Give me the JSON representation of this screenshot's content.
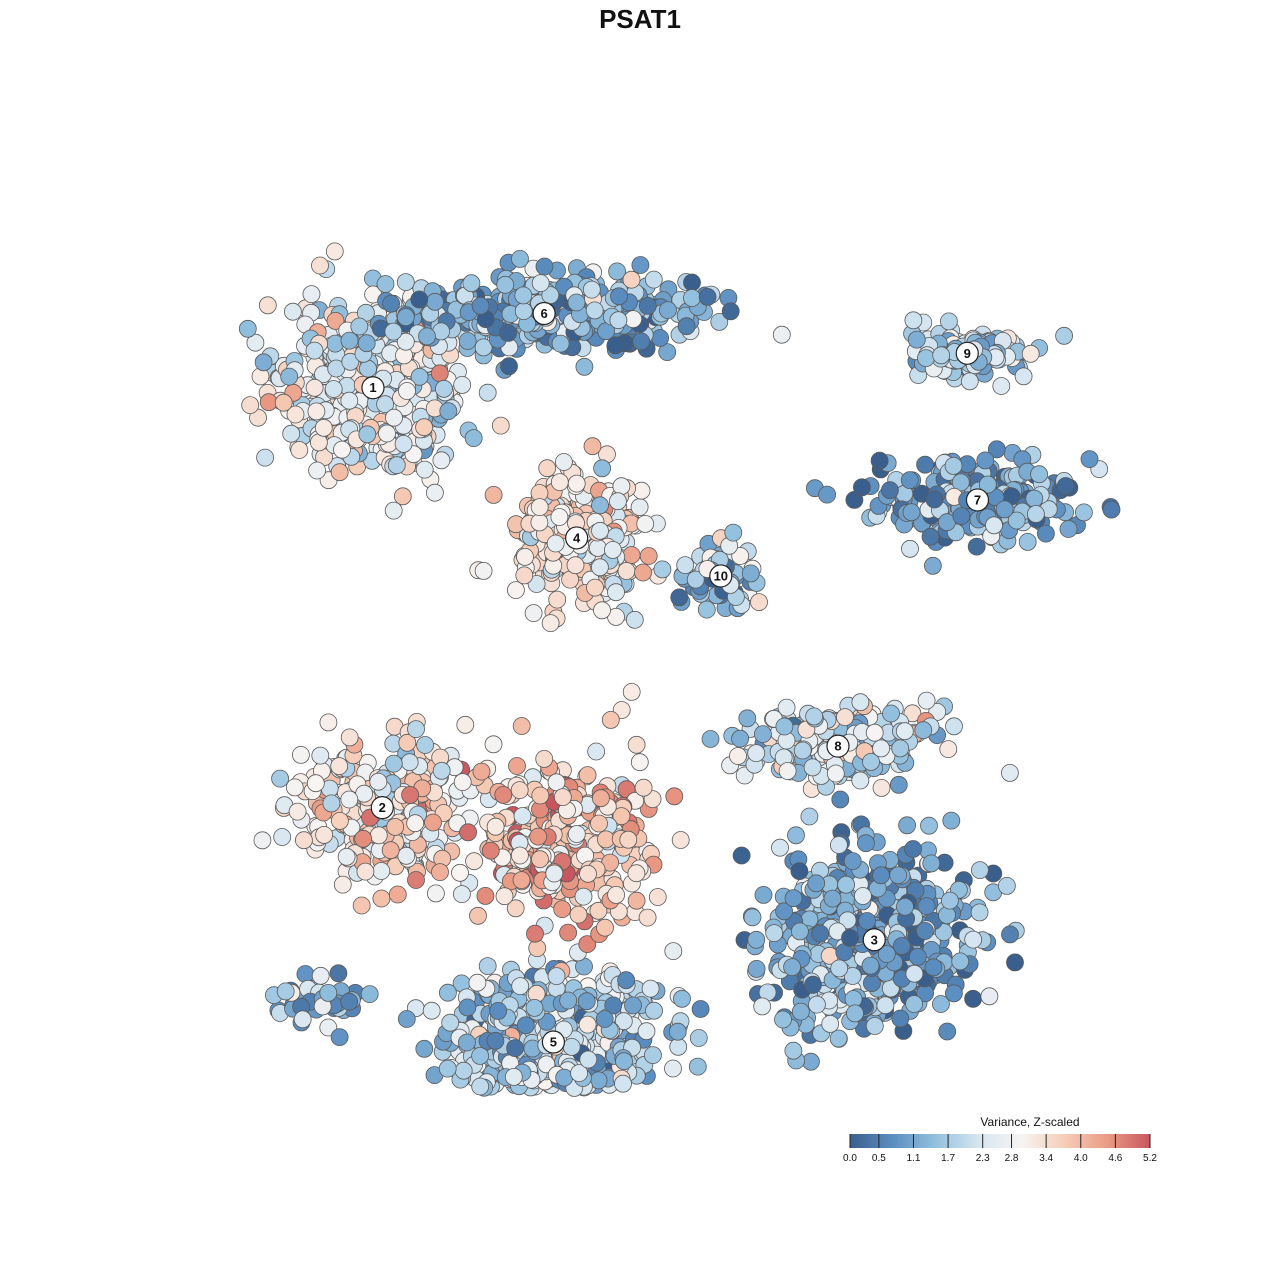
{
  "chart_data": {
    "type": "scatter",
    "title": "PSAT1",
    "xlabel": "",
    "ylabel": "",
    "color_scale": {
      "title": "Variance, Z-scaled",
      "min": 0.0,
      "max": 5.2,
      "ticks": [
        "0.0",
        "0.5",
        "1.1",
        "1.7",
        "2.3",
        "2.8",
        "3.4",
        "4.0",
        "4.6",
        "5.2"
      ],
      "colors": [
        "#3a5f8c",
        "#5b8ec1",
        "#93c0de",
        "#d6e6f1",
        "#f7f4f2",
        "#f6cdb8",
        "#ea9c85",
        "#c8565f"
      ],
      "legend_placement": "bottom-right"
    },
    "x_range": [
      0,
      1
    ],
    "y_range": [
      0,
      1
    ],
    "clusters": [
      {
        "label": "1",
        "x": 0.186,
        "y": 0.776,
        "spread": [
          0.085,
          0.085
        ],
        "mean": 2.6,
        "n": 520
      },
      {
        "label": "6",
        "x": 0.37,
        "y": 0.858,
        "spread": [
          0.14,
          0.035
        ],
        "mean": 1.3,
        "n": 520
      },
      {
        "label": "9",
        "x": 0.825,
        "y": 0.814,
        "spread": [
          0.06,
          0.025
        ],
        "mean": 1.9,
        "n": 140
      },
      {
        "label": "4",
        "x": 0.405,
        "y": 0.61,
        "spread": [
          0.06,
          0.065
        ],
        "mean": 3.1,
        "n": 330
      },
      {
        "label": "10",
        "x": 0.56,
        "y": 0.568,
        "spread": [
          0.035,
          0.04
        ],
        "mean": 1.5,
        "n": 80
      },
      {
        "label": "7",
        "x": 0.836,
        "y": 0.652,
        "spread": [
          0.1,
          0.04
        ],
        "mean": 1.1,
        "n": 260
      },
      {
        "label": "8",
        "x": 0.686,
        "y": 0.38,
        "spread": [
          0.09,
          0.04
        ],
        "mean": 2.3,
        "n": 230
      },
      {
        "label": "2",
        "x": 0.196,
        "y": 0.312,
        "spread": [
          0.08,
          0.07
        ],
        "mean": 3.2,
        "n": 280
      },
      {
        "label": "3",
        "x": 0.725,
        "y": 0.166,
        "spread": [
          0.1,
          0.09
        ],
        "mean": 1.2,
        "n": 560
      },
      {
        "label": "5",
        "x": 0.38,
        "y": 0.053,
        "spread": [
          0.1,
          0.07
        ],
        "mean": 1.9,
        "n": 600
      },
      {
        "label": "",
        "x": 0.39,
        "y": 0.275,
        "spread": [
          0.09,
          0.085
        ],
        "mean": 3.6,
        "n": 340
      },
      {
        "label": "",
        "x": 0.118,
        "y": 0.095,
        "spread": [
          0.05,
          0.025
        ],
        "mean": 1.4,
        "n": 40
      }
    ]
  }
}
